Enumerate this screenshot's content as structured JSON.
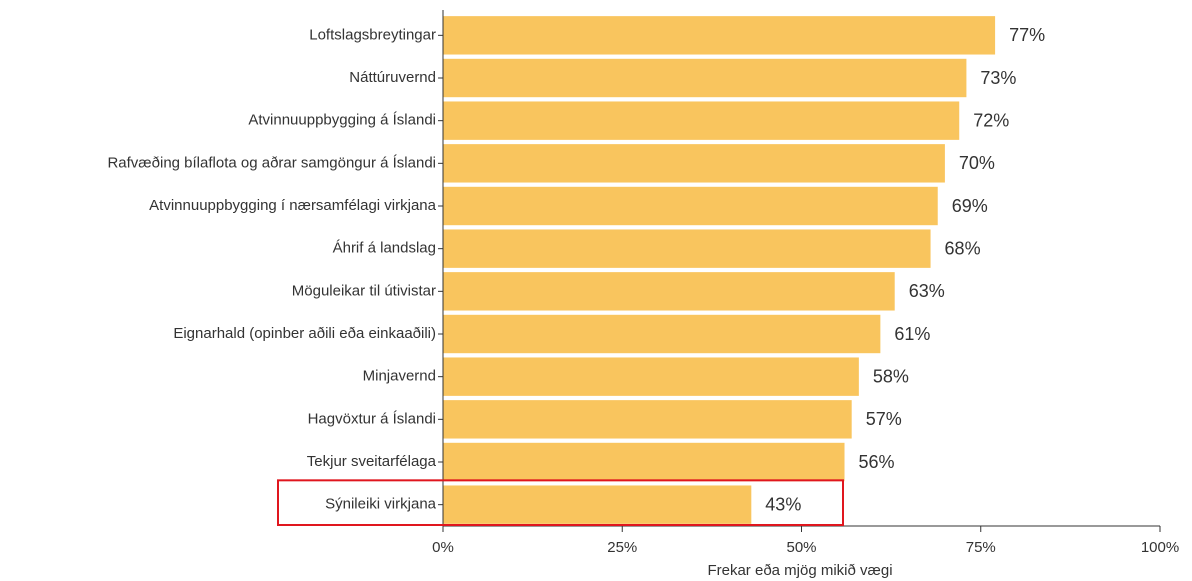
{
  "chart_data": {
    "type": "bar",
    "orientation": "horizontal",
    "x_label": "Frekar eða mjög mikið vægi",
    "categories": [
      "Loftslagsbreytingar",
      "Náttúruvernd",
      "Atvinnuuppbygging á Íslandi",
      "Rafvæðing bílaflota og aðrar samgöngur á Íslandi",
      "Atvinnuuppbygging í nærsamfélagi virkjana",
      "Áhrif á landslag",
      "Möguleikar til útivistar",
      "Eignarhald (opinber aðili eða einkaaðili)",
      "Minjavernd",
      "Hagvöxtur á Íslandi",
      "Tekjur sveitarfélaga",
      "Sýnileiki virkjana"
    ],
    "values": [
      77,
      73,
      72,
      70,
      69,
      68,
      63,
      61,
      58,
      57,
      56,
      43
    ],
    "value_labels": [
      "77%",
      "73%",
      "72%",
      "70%",
      "69%",
      "68%",
      "63%",
      "61%",
      "58%",
      "57%",
      "56%",
      "43%"
    ],
    "color": "#f9c55e",
    "xlim": [
      0,
      100
    ],
    "xticks": [
      {
        "value": 0,
        "label": "0%"
      },
      {
        "value": 25,
        "label": "25%"
      },
      {
        "value": 50,
        "label": "50%"
      },
      {
        "value": 75,
        "label": "75%"
      },
      {
        "value": 100,
        "label": "100%"
      }
    ]
  }
}
